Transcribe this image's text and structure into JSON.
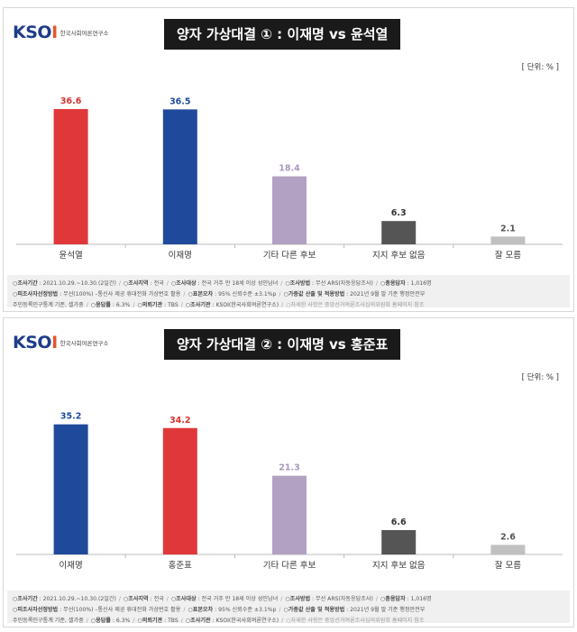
{
  "brand": {
    "logo_main": "KSO",
    "logo_accent": "I",
    "logo_sub": "한국사회여론연구소"
  },
  "unit_label": "[ 단위: % ]",
  "chart_data": [
    {
      "type": "bar",
      "title": "양자 가상대결 ① : 이재명 vs 윤석열",
      "categories": [
        "윤석열",
        "이재명",
        "기타 다른 후보",
        "지지 후보 없음",
        "잘 모름"
      ],
      "values": [
        36.6,
        36.5,
        18.4,
        6.3,
        2.1
      ],
      "value_labels": [
        "36.6",
        "36.5",
        "18.4",
        "6.3",
        "2.1"
      ],
      "colors": [
        "#e0383a",
        "#1f4a9c",
        "#b2a1c2",
        "#555555",
        "#c0c0c0"
      ],
      "label_colors": [
        "#d7332e",
        "#1f4a9c",
        "#a897bc",
        "#333333",
        "#555555"
      ],
      "ylim": [
        0,
        40
      ],
      "xlabel": "",
      "ylabel": "",
      "grid": false
    },
    {
      "type": "bar",
      "title": "양자 가상대결 ② : 이재명 vs 홍준표",
      "categories": [
        "이재명",
        "홍준표",
        "기타 다른 후보",
        "지지 후보 없음",
        "잘 모름"
      ],
      "values": [
        35.2,
        34.2,
        21.3,
        6.6,
        2.6
      ],
      "value_labels": [
        "35.2",
        "34.2",
        "21.3",
        "6.6",
        "2.6"
      ],
      "colors": [
        "#1f4a9c",
        "#e0383a",
        "#b2a1c2",
        "#555555",
        "#c0c0c0"
      ],
      "label_colors": [
        "#1f4a9c",
        "#d7332e",
        "#a897bc",
        "#333333",
        "#555555"
      ],
      "ylim": [
        0,
        40
      ],
      "xlabel": "",
      "ylabel": "",
      "grid": false
    }
  ],
  "footer": [
    [
      {
        "k": "조사기간",
        "v": "2021.10.29.~10.30.(2일간)"
      },
      {
        "k": "조사지역",
        "v": "전국"
      },
      {
        "k": "조사대상",
        "v": "전국 거주 만 18세 이상 성인남녀"
      },
      {
        "k": "조사방법",
        "v": "무선 ARS(자동응답조사)"
      },
      {
        "k": "총응답자",
        "v": "1,016명"
      }
    ],
    [
      {
        "k": "피조사자선정방법",
        "v": "무선(100%) –통신사 제공 휴대전화 가상번호 활용"
      },
      {
        "k": "표본오차",
        "v": "95% 신뢰수준 ±3.1%p"
      },
      {
        "k": "가중값 산출 및 적용방법",
        "v": "2021년 9월 말 기준 행정안전부"
      }
    ],
    [
      {
        "k": "",
        "v": "주민등록인구통계 기준, 셀가중"
      },
      {
        "k": "응답률",
        "v": "6.3%"
      },
      {
        "k": "의뢰기관",
        "v": "TBS"
      },
      {
        "k": "조사기관",
        "v": "KSOI(한국사회여론연구소)"
      },
      {
        "k": "",
        "v": "○자세한 사항은 중앙선거여론조사심의위원회 홈페이지 참조",
        "dim": true
      }
    ]
  ]
}
